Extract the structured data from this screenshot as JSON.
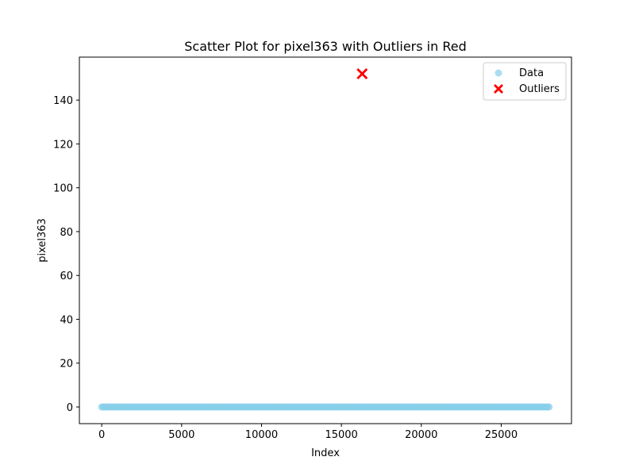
{
  "chart_data": {
    "type": "scatter",
    "title": "Scatter Plot for pixel363 with Outliers in Red",
    "xlabel": "Index",
    "ylabel": "pixel363",
    "xlim": [
      -1400,
      29400
    ],
    "ylim": [
      -7.6,
      159.6
    ],
    "xticks": [
      0,
      5000,
      10000,
      15000,
      20000,
      25000
    ],
    "yticks": [
      0,
      20,
      40,
      60,
      80,
      100,
      120,
      140
    ],
    "grid": false,
    "legend_position": "top-right",
    "series": [
      {
        "name": "Data",
        "color": "#87ceeb",
        "marker": "circle",
        "x_start": 0,
        "x_end": 27999,
        "y": 0
      },
      {
        "name": "Outliers",
        "color": "#ff0000",
        "marker": "x",
        "points": [
          {
            "x": 16300,
            "y": 152
          }
        ]
      }
    ]
  }
}
